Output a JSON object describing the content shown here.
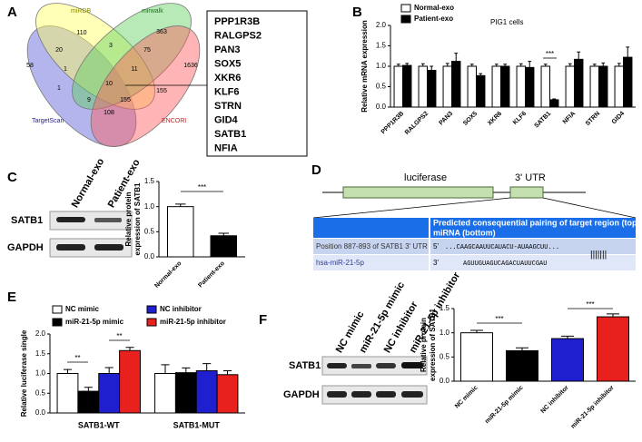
{
  "panel_labels": [
    "A",
    "B",
    "C",
    "D",
    "E",
    "F"
  ],
  "venn": {
    "sets": [
      "miRDB",
      "mirwalk",
      "TargetScan",
      "ENCORI"
    ],
    "regions": [
      110,
      3,
      363,
      20,
      75,
      58,
      1,
      11,
      1636,
      10,
      1,
      155,
      9,
      155,
      108
    ]
  },
  "gene_list": [
    "PPP1R3B",
    "RALGPS2",
    "PAN3",
    "SOX5",
    "XKR6",
    "KLF6",
    "STRN",
    "GID4",
    "SATB1",
    "NFIA"
  ],
  "blot_c": {
    "columns": [
      "Normal-exo",
      "Patient-exo"
    ],
    "rows": [
      "SATB1",
      "GAPDH"
    ]
  },
  "blot_f": {
    "columns": [
      "NC mimic",
      "miR-21-5p mimic",
      "NC inhibitor",
      "miR-21-5p inhibitor"
    ],
    "rows": [
      "SATB1",
      "GAPDH"
    ]
  },
  "luciferase_diagram": {
    "elements": [
      "luciferase",
      "3' UTR"
    ],
    "header": [
      "Predicted consequential pairing of target region (top) and",
      "miRNA (bottom)"
    ],
    "rows": [
      [
        "Position 887-893 of SATB1 3' UTR",
        "5'",
        "...CAAGCAAUUCAUACU-AUAAGCUU..."
      ],
      [
        "hsa-miR-21-5p",
        "3'",
        "AGUUGUAGUCAGACUAUUCGAU"
      ]
    ],
    "pairing": "|||||||"
  },
  "chart_data": [
    {
      "type": "bar",
      "ylabel": [
        "Relative mRNA expression"
      ],
      "subtitle": "PIG1 cells",
      "annotations": [
        "***"
      ],
      "categories": [
        "PPP1R3B",
        "RALGPS2",
        "PAN3",
        "SOX5",
        "XKR6",
        "KLF6",
        "SATB1",
        "NFIA",
        "STRN",
        "GID4"
      ],
      "series": [
        {
          "name": "Normal-exo",
          "color": "#ffffff",
          "values": [
            1,
            1,
            1,
            1,
            1,
            1,
            1,
            1,
            1,
            1
          ],
          "errors": [
            0.05,
            0.06,
            0.07,
            0.05,
            0.05,
            0.06,
            0.05,
            0.06,
            0.05,
            0.07
          ]
        },
        {
          "name": "Patient-exo",
          "color": "#000000",
          "values": [
            1.02,
            0.9,
            1.12,
            0.77,
            1.0,
            0.97,
            0.18,
            1.17,
            1.0,
            1.22
          ],
          "errors": [
            0.05,
            0.1,
            0.2,
            0.05,
            0.05,
            0.15,
            0.02,
            0.18,
            0.08,
            0.25
          ]
        }
      ],
      "ylim": [
        0,
        2
      ],
      "yticks": [
        {
          "value": 0,
          "label": "0.0"
        },
        {
          "value": 0.5,
          "label": "0.5"
        },
        {
          "value": 1,
          "label": "1.0"
        },
        {
          "value": 1.5,
          "label": "1.5"
        },
        {
          "value": 2,
          "label": "2.0"
        }
      ]
    },
    {
      "type": "bar",
      "ylabel": [
        "Relative protein",
        "expression of SATB1"
      ],
      "annotations": [
        "***"
      ],
      "categories": [
        "Normal-exo",
        "Patient-exo"
      ],
      "values": [
        1.0,
        0.42
      ],
      "errors": [
        0.05,
        0.05
      ],
      "colors": [
        "#ffffff",
        "#000000"
      ],
      "ylim": [
        0,
        1.5
      ],
      "yticks": [
        {
          "value": 0,
          "label": "0.0"
        },
        {
          "value": 0.5,
          "label": "0.5"
        },
        {
          "value": 1,
          "label": "1.0"
        },
        {
          "value": 1.5,
          "label": "1.5"
        }
      ]
    },
    {
      "type": "bar",
      "ylabel": [
        "Relative luciferase single"
      ],
      "annotations": [
        "**",
        "**"
      ],
      "categories": [
        "SATB1-WT",
        "SATB1-MUT"
      ],
      "series": [
        {
          "name": "NC mimic",
          "color": "#ffffff",
          "values": [
            1.0,
            1.0
          ],
          "errors": [
            0.1,
            0.22
          ]
        },
        {
          "name": "miR-21-5p mimic",
          "color": "#000000",
          "values": [
            0.55,
            1.02
          ],
          "errors": [
            0.1,
            0.12
          ]
        },
        {
          "name": "NC inhibitor",
          "color": "#1f1fd0",
          "values": [
            1.0,
            1.07
          ],
          "errors": [
            0.15,
            0.18
          ]
        },
        {
          "name": "miR-21-5p inhibitor",
          "color": "#e8201e",
          "values": [
            1.58,
            0.97
          ],
          "errors": [
            0.08,
            0.1
          ]
        }
      ],
      "ylim": [
        0,
        2
      ],
      "yticks": [
        {
          "value": 0,
          "label": "0.0"
        },
        {
          "value": 0.5,
          "label": "0.5"
        },
        {
          "value": 1,
          "label": "1.0"
        },
        {
          "value": 1.5,
          "label": "1.5"
        },
        {
          "value": 2,
          "label": "2.0"
        }
      ]
    },
    {
      "type": "bar",
      "ylabel": [
        "Relative protein",
        "expression of SATB1"
      ],
      "annotations": [
        "***",
        "***"
      ],
      "categories": [
        "NC mimic",
        "miR-21-5p mimic",
        "NC inhibitor",
        "miR-21-5p inhibitor"
      ],
      "values": [
        1.0,
        0.63,
        0.88,
        1.33
      ],
      "errors": [
        0.05,
        0.06,
        0.05,
        0.06
      ],
      "colors": [
        "#ffffff",
        "#000000",
        "#1f1fd0",
        "#e8201e"
      ],
      "ylim": [
        0,
        1.5
      ],
      "yticks": [
        {
          "value": 0,
          "label": "0.0"
        },
        {
          "value": 0.5,
          "label": "0.5"
        },
        {
          "value": 1,
          "label": "1.0"
        },
        {
          "value": 1.5,
          "label": "1.5"
        }
      ]
    }
  ]
}
